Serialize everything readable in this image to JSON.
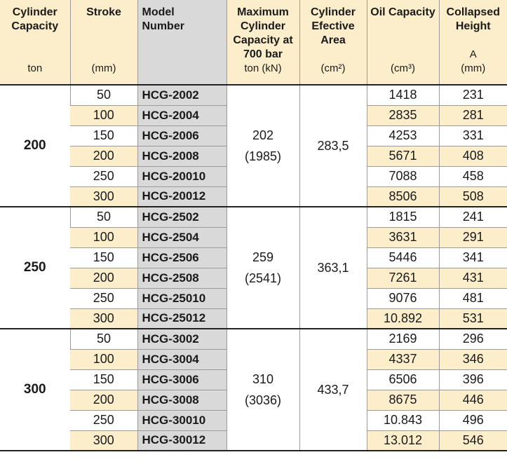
{
  "headers": [
    {
      "title": "Cylinder Capacity",
      "unit": "ton"
    },
    {
      "title": "Stroke",
      "unit": "(mm)"
    },
    {
      "title": "Model Number",
      "unit": ""
    },
    {
      "title": "Maximum Cylinder Capacity at 700 bar",
      "unit": "ton (kN)"
    },
    {
      "title": "Cylinder Efective Area",
      "unit": "(cm²)"
    },
    {
      "title": "Oil Capacity",
      "unit": "(cm³)"
    },
    {
      "title": "Collapsed Height",
      "unit": "A\n(mm)"
    }
  ],
  "groups": [
    {
      "capacity": "200",
      "max_capacity": "202",
      "max_capacity_kn": "(1985)",
      "area": "283,5",
      "rows": [
        {
          "stroke": "50",
          "model": "HCG-2002",
          "oil": "1418",
          "height": "231"
        },
        {
          "stroke": "100",
          "model": "HCG-2004",
          "oil": "2835",
          "height": "281"
        },
        {
          "stroke": "150",
          "model": "HCG-2006",
          "oil": "4253",
          "height": "331"
        },
        {
          "stroke": "200",
          "model": "HCG-2008",
          "oil": "5671",
          "height": "408"
        },
        {
          "stroke": "250",
          "model": "HCG-20010",
          "oil": "7088",
          "height": "458"
        },
        {
          "stroke": "300",
          "model": "HCG-20012",
          "oil": "8506",
          "height": "508"
        }
      ]
    },
    {
      "capacity": "250",
      "max_capacity": "259",
      "max_capacity_kn": "(2541)",
      "area": "363,1",
      "rows": [
        {
          "stroke": "50",
          "model": "HCG-2502",
          "oil": "1815",
          "height": "241"
        },
        {
          "stroke": "100",
          "model": "HCG-2504",
          "oil": "3631",
          "height": "291"
        },
        {
          "stroke": "150",
          "model": "HCG-2506",
          "oil": "5446",
          "height": "341"
        },
        {
          "stroke": "200",
          "model": "HCG-2508",
          "oil": "7261",
          "height": "431"
        },
        {
          "stroke": "250",
          "model": "HCG-25010",
          "oil": "9076",
          "height": "481"
        },
        {
          "stroke": "300",
          "model": "HCG-25012",
          "oil": "10.892",
          "height": "531"
        }
      ]
    },
    {
      "capacity": "300",
      "max_capacity": "310",
      "max_capacity_kn": "(3036)",
      "area": "433,7",
      "rows": [
        {
          "stroke": "50",
          "model": "HCG-3002",
          "oil": "2169",
          "height": "296"
        },
        {
          "stroke": "100",
          "model": "HCG-3004",
          "oil": "4337",
          "height": "346"
        },
        {
          "stroke": "150",
          "model": "HCG-3006",
          "oil": "6506",
          "height": "396"
        },
        {
          "stroke": "200",
          "model": "HCG-3008",
          "oil": "8675",
          "height": "446"
        },
        {
          "stroke": "250",
          "model": "HCG-30010",
          "oil": "10.843",
          "height": "496"
        },
        {
          "stroke": "300",
          "model": "HCG-30012",
          "oil": "13.012",
          "height": "546"
        }
      ]
    }
  ],
  "colors": {
    "stripe": "#fdeecb",
    "model_column": "#d9d9d9",
    "rule": "#222222"
  }
}
